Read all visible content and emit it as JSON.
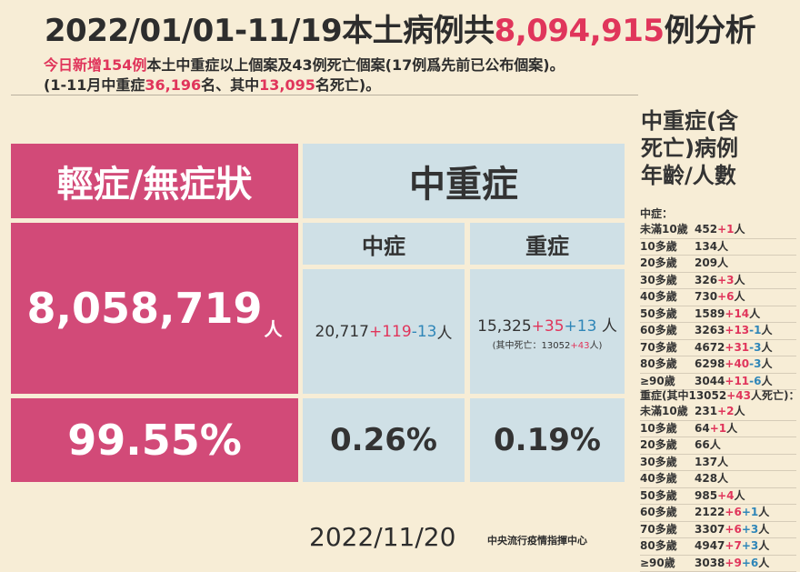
{
  "title": {
    "prefix": "2022/01/01-11/19本土病例共",
    "total": "8,094,915",
    "suffix": "例分析"
  },
  "subtitle1": {
    "new_prefix": "今日新增154例",
    "rest": "本土中重症以上個案及43例死亡個案(17例爲先前已公布個案)。"
  },
  "subtitle2": {
    "p1": "(1-11月中重症",
    "severe_total": "36,196",
    "p2": "名、其中",
    "deaths": "13,095",
    "p3": "名死亡)。"
  },
  "mild": {
    "header": "輕症/無症狀",
    "count": "8,058,719",
    "unit": "人",
    "percent": "99.55%"
  },
  "severe_header": "中重症",
  "moderate": {
    "label": "中症",
    "base": "20,717",
    "plus": "+119",
    "minus": "-13",
    "unit": "人",
    "percent": "0.26%"
  },
  "critical": {
    "label": "重症",
    "base": "15,325",
    "plus": "+35",
    "plus2": "+13",
    "unit": "人",
    "death_prefix": "(其中死亡：13052",
    "death_plus": "+43",
    "death_suffix": "人)",
    "percent": "0.19%"
  },
  "side_title": [
    "中重症(含",
    "死亡)病例",
    "年齡/人數"
  ],
  "moderate_list": {
    "header": "中症：",
    "rows": [
      {
        "age": "未滿10歲",
        "n": "452",
        "red": "+1",
        "blue": "",
        "unit": "人"
      },
      {
        "age": "10多歲",
        "n": "134人",
        "red": "",
        "blue": "",
        "unit": ""
      },
      {
        "age": "20多歲",
        "n": "209人",
        "red": "",
        "blue": "",
        "unit": ""
      },
      {
        "age": "30多歲",
        "n": "326",
        "red": "+3",
        "blue": "",
        "unit": "人"
      },
      {
        "age": "40多歲",
        "n": "730",
        "red": "+6",
        "blue": "",
        "unit": "人"
      },
      {
        "age": "50多歲",
        "n": "1589",
        "red": "+14",
        "blue": "",
        "unit": "人"
      },
      {
        "age": "60多歲",
        "n": "3263",
        "red": "+13",
        "blue": "-1",
        "unit": "人"
      },
      {
        "age": "70多歲",
        "n": "4672",
        "red": "+31",
        "blue": "-3",
        "unit": "人"
      },
      {
        "age": "80多歲",
        "n": "6298",
        "red": "+40",
        "blue": "-3",
        "unit": "人"
      },
      {
        "age": "≥90歲",
        "n": "3044",
        "red": "+11",
        "blue": "-6",
        "unit": "人"
      }
    ]
  },
  "critical_list": {
    "header_prefix": "重症(其中13052",
    "header_red": "+43",
    "header_suffix": "人死亡)：",
    "rows": [
      {
        "age": "未滿10歲",
        "n": "231",
        "red": "+2",
        "blue": "",
        "unit": "人"
      },
      {
        "age": "10多歲",
        "n": "64",
        "red": "+1",
        "blue": "",
        "unit": "人"
      },
      {
        "age": "20多歲",
        "n": "66人",
        "red": "",
        "blue": "",
        "unit": ""
      },
      {
        "age": "30多歲",
        "n": "137人",
        "red": "",
        "blue": "",
        "unit": ""
      },
      {
        "age": "40多歲",
        "n": "428人",
        "red": "",
        "blue": "",
        "unit": ""
      },
      {
        "age": "50多歲",
        "n": "985",
        "red": "+4",
        "blue": "",
        "unit": "人"
      },
      {
        "age": "60多歲",
        "n": "2122",
        "red": "+6",
        "blue": "+1",
        "unit": "人"
      },
      {
        "age": "70多歲",
        "n": "3307",
        "red": "+6",
        "blue": "+3",
        "unit": "人"
      },
      {
        "age": "80多歲",
        "n": "4947",
        "red": "+7",
        "blue": "+3",
        "unit": "人"
      },
      {
        "age": "≥90歲",
        "n": "3038",
        "red": "+9",
        "blue": "+6",
        "unit": "人"
      }
    ]
  },
  "date": "2022/11/20",
  "issuer": "中央流行疫情指揮中心",
  "colors": {
    "background": "#f7edd6",
    "pink": "#d24a78",
    "pale_blue": "#cfe0e6",
    "red": "#e0355b",
    "blue": "#2f86b8"
  }
}
